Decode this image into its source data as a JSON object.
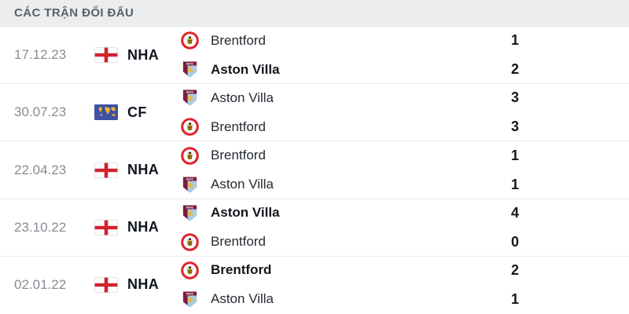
{
  "header": {
    "title": "CÁC TRẬN ĐỐI ĐẤU"
  },
  "colors": {
    "header_bg": "#ebedee",
    "header_text": "#5b6167",
    "date_text": "#878d94",
    "team_text": "#262a33",
    "bold_text": "#14161c",
    "row_divider": "#e9ebee",
    "england_flag_red": "#d2232e",
    "world_flag_blue": "#3f51a5",
    "world_flag_map": "#f2b32c",
    "brentford_red": "#e0232e",
    "brentford_bee_yellow": "#f2c21a",
    "villa_claret": "#7a1d3d",
    "villa_blue": "#a5cdea",
    "villa_lion_yellow": "#edb83a"
  },
  "matches": [
    {
      "date": "17.12.23",
      "competition": {
        "code": "NHA",
        "flag": "england"
      },
      "teams": [
        {
          "name": "Brentford",
          "logo": "brentford",
          "score": "1",
          "winner": false
        },
        {
          "name": "Aston Villa",
          "logo": "aston-villa",
          "score": "2",
          "winner": true
        }
      ]
    },
    {
      "date": "30.07.23",
      "competition": {
        "code": "CF",
        "flag": "world"
      },
      "teams": [
        {
          "name": "Aston Villa",
          "logo": "aston-villa",
          "score": "3",
          "winner": false
        },
        {
          "name": "Brentford",
          "logo": "brentford",
          "score": "3",
          "winner": false
        }
      ]
    },
    {
      "date": "22.04.23",
      "competition": {
        "code": "NHA",
        "flag": "england"
      },
      "teams": [
        {
          "name": "Brentford",
          "logo": "brentford",
          "score": "1",
          "winner": false
        },
        {
          "name": "Aston Villa",
          "logo": "aston-villa",
          "score": "1",
          "winner": false
        }
      ]
    },
    {
      "date": "23.10.22",
      "competition": {
        "code": "NHA",
        "flag": "england"
      },
      "teams": [
        {
          "name": "Aston Villa",
          "logo": "aston-villa",
          "score": "4",
          "winner": true
        },
        {
          "name": "Brentford",
          "logo": "brentford",
          "score": "0",
          "winner": false
        }
      ]
    },
    {
      "date": "02.01.22",
      "competition": {
        "code": "NHA",
        "flag": "england"
      },
      "teams": [
        {
          "name": "Brentford",
          "logo": "brentford",
          "score": "2",
          "winner": true
        },
        {
          "name": "Aston Villa",
          "logo": "aston-villa",
          "score": "1",
          "winner": false
        }
      ]
    }
  ]
}
